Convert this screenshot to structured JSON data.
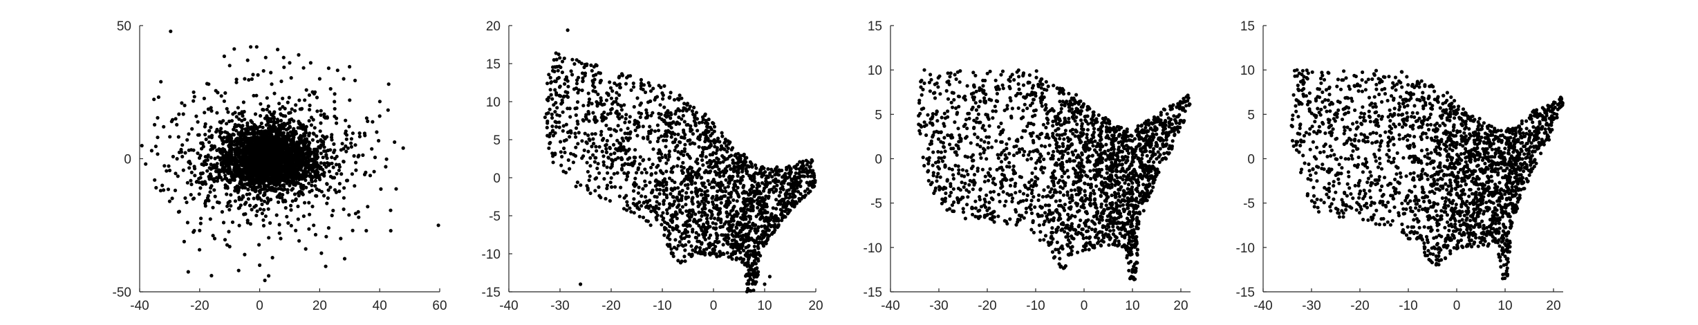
{
  "chart_data": [
    {
      "type": "scatter",
      "title": "",
      "xlabel": "",
      "ylabel": "",
      "xlim": [
        -40,
        60
      ],
      "ylim": [
        -50,
        50
      ],
      "xticks": [
        -40,
        -20,
        0,
        20,
        40,
        60
      ],
      "yticks": [
        -50,
        0,
        50
      ],
      "grid": false,
      "series": [
        {
          "shape": "blob",
          "count": 3000,
          "seed": 11,
          "points": [
            [
              -3,
              42
            ],
            [
              -1,
              42
            ],
            [
              6,
              41
            ],
            [
              8,
              38
            ],
            [
              13,
              39
            ],
            [
              2,
              38
            ],
            [
              -4,
              37
            ],
            [
              10,
              36
            ],
            [
              17,
              36
            ],
            [
              -10,
              35
            ],
            [
              23,
              34
            ],
            [
              20,
              30
            ],
            [
              28,
              30
            ],
            [
              -5,
              30
            ],
            [
              4,
              28
            ],
            [
              -17,
              28
            ],
            [
              -22,
              25
            ],
            [
              15,
              22
            ],
            [
              -25,
              20
            ],
            [
              -28,
              15
            ],
            [
              -32,
              12
            ],
            [
              -34,
              8
            ],
            [
              -36,
              3
            ],
            [
              -38,
              -2
            ],
            [
              -35,
              -8
            ],
            [
              -33,
              -12
            ],
            [
              -30,
              -16
            ],
            [
              -27,
              -20
            ],
            [
              -24,
              -24
            ],
            [
              -20,
              -27
            ],
            [
              -15,
              -30
            ],
            [
              -10,
              -33
            ],
            [
              -5,
              -36
            ],
            [
              0,
              -40
            ],
            [
              3,
              -44
            ],
            [
              -7,
              -42
            ],
            [
              7,
              -30
            ],
            [
              12,
              -27
            ],
            [
              18,
              -25
            ],
            [
              23,
              -26
            ],
            [
              27,
              -30
            ],
            [
              31,
              -27
            ],
            [
              33,
              -22
            ],
            [
              28,
              -19
            ],
            [
              36,
              -18
            ],
            [
              42,
              -3
            ],
            [
              39,
              10
            ],
            [
              40,
              16
            ],
            [
              43,
              28
            ],
            [
              30,
              22
            ],
            [
              24,
              9
            ],
            [
              -12,
              -24
            ]
          ]
        }
      ]
    },
    {
      "type": "scatter",
      "title": "",
      "xlabel": "",
      "ylabel": "",
      "xlim": [
        -40,
        20
      ],
      "ylim": [
        -15,
        20
      ],
      "xticks": [
        -40,
        -30,
        -20,
        -10,
        0,
        10,
        20
      ],
      "yticks": [
        -15,
        -10,
        -5,
        0,
        5,
        10,
        15,
        20
      ],
      "grid": false,
      "series": [
        {
          "shape": "map-rotated",
          "count": 2200,
          "seed": 23,
          "points": [
            [
              -28.5,
              19.4
            ],
            [
              -26,
              -14
            ],
            [
              10,
              -14
            ],
            [
              11,
              -13
            ]
          ]
        }
      ]
    },
    {
      "type": "scatter",
      "title": "",
      "xlabel": "",
      "ylabel": "",
      "xlim": [
        -40,
        22
      ],
      "ylim": [
        -15,
        15
      ],
      "xticks": [
        -40,
        -30,
        -20,
        -10,
        0,
        10,
        20
      ],
      "yticks": [
        -15,
        -10,
        -5,
        0,
        5,
        10,
        15
      ],
      "grid": false,
      "series": [
        {
          "shape": "map",
          "count": 2200,
          "seed": 37,
          "points": [
            [
              -33,
              10
            ],
            [
              -33,
              8.5
            ],
            [
              9.5,
              -13.5
            ],
            [
              10,
              -12.5
            ]
          ]
        }
      ]
    },
    {
      "type": "scatter",
      "title": "",
      "xlabel": "",
      "ylabel": "",
      "xlim": [
        -40,
        22
      ],
      "ylim": [
        -15,
        15
      ],
      "xticks": [
        -40,
        -30,
        -20,
        -10,
        0,
        10,
        20
      ],
      "yticks": [
        -15,
        -10,
        -5,
        0,
        5,
        10,
        15
      ],
      "grid": false,
      "series": [
        {
          "shape": "map",
          "count": 2200,
          "seed": 53,
          "points": [
            [
              -33,
              10
            ],
            [
              -32,
              9.5
            ],
            [
              9.5,
              -13.5
            ],
            [
              10,
              -13
            ]
          ]
        }
      ]
    }
  ]
}
